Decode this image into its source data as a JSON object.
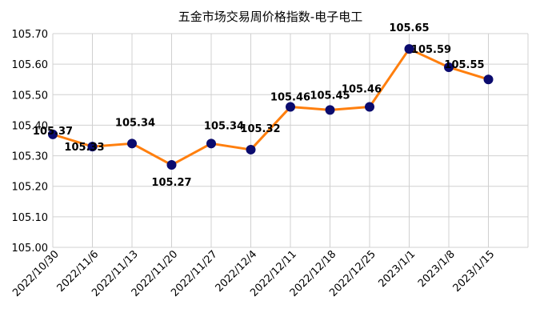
{
  "chart_data": {
    "type": "line",
    "title": "五金市场交易周价格指数-电子电工",
    "xlabel": "",
    "ylabel": "",
    "ylim": [
      105.0,
      105.7
    ],
    "yticks": [
      "105.00",
      "105.10",
      "105.20",
      "105.30",
      "105.40",
      "105.50",
      "105.60",
      "105.70"
    ],
    "categories": [
      "2022/10/30",
      "2022/11/6",
      "2022/11/13",
      "2022/11/20",
      "2022/11/27",
      "2022/12/4",
      "2022/12/11",
      "2022/12/18",
      "2022/12/25",
      "2023/1/1",
      "2023/1/8",
      "2023/1/15"
    ],
    "series": [
      {
        "values": [
          105.37,
          105.33,
          105.34,
          105.27,
          105.34,
          105.32,
          105.46,
          105.45,
          105.46,
          105.65,
          105.59,
          105.55
        ],
        "data_labels": [
          "105.37",
          "105.33",
          "105.34",
          "105.27",
          "105.34",
          "105.32",
          "105.46",
          "105.45",
          "105.46",
          "105.65",
          "105.59",
          "105.55"
        ],
        "line_color": "#ff7f0e",
        "marker_color": "#0b0b6e"
      }
    ],
    "grid": true,
    "legend": "none"
  }
}
